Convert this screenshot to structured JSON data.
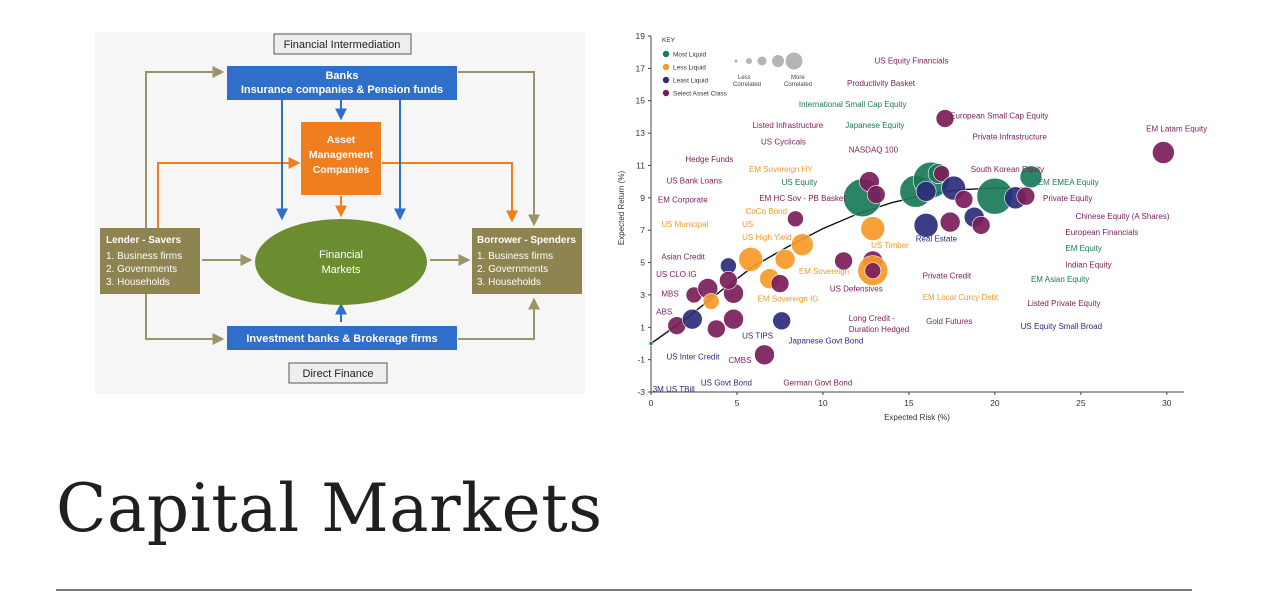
{
  "slide": {
    "title": "Capital Markets"
  },
  "diagram": {
    "financial_intermediation": "Financial Intermediation",
    "direct_finance": "Direct Finance",
    "banks": {
      "line1": "Banks",
      "line2": "Insurance companies & Pension funds"
    },
    "asset_management": {
      "line1": "Asset",
      "line2": "Management",
      "line3": "Companies"
    },
    "markets": {
      "line1": "Financial",
      "line2": "Markets"
    },
    "investment_banks": "Investment banks & Brokerage firms",
    "lender": {
      "title": "Lender - Savers",
      "items": [
        "1. Business firms",
        "2. Governments",
        "3. Households"
      ]
    },
    "borrower": {
      "title": "Borrower - Spenders",
      "items": [
        "1. Business firms",
        "2. Governments",
        "3. Households"
      ]
    },
    "colors": {
      "blue": "#2f6fc9",
      "orange": "#f07d1e",
      "green": "#6b8c2f",
      "olive": "#8d8452",
      "arrow_olive": "#9a9468"
    }
  },
  "chart_data": {
    "type": "scatter",
    "xlabel": "Expected Risk (%)",
    "ylabel": "Expected Return (%)",
    "xlim": [
      0,
      31
    ],
    "ylim": [
      -3,
      19
    ],
    "x_ticks": [
      "0",
      "5",
      "10",
      "15",
      "20",
      "25",
      "30"
    ],
    "y_ticks": [
      "-3",
      "-1",
      "1",
      "3",
      "5",
      "7",
      "9",
      "11",
      "13",
      "15",
      "17",
      "19"
    ],
    "grid": false,
    "legend": {
      "title": "KEY",
      "items": [
        "Most Liquid",
        "Less Liquid",
        "Least Liquid",
        "Select Asset Class"
      ],
      "size_low": "Less",
      "size_low2": "Correlated",
      "size_high": "More",
      "size_high2": "Correlated"
    },
    "colors": {
      "most": "#1a7a5a",
      "less": "#f59a28",
      "least": "#2b2c7a",
      "select": "#7a1e5a"
    },
    "frontier": [
      [
        0,
        0
      ],
      [
        2,
        1.5
      ],
      [
        4,
        3.2
      ],
      [
        6,
        4.8
      ],
      [
        8,
        6.0
      ],
      [
        10,
        7.1
      ],
      [
        12,
        8.0
      ],
      [
        14,
        8.7
      ],
      [
        16,
        9.2
      ],
      [
        18,
        9.5
      ],
      [
        20,
        9.6
      ],
      [
        22,
        9.6
      ]
    ],
    "points": [
      {
        "x": 0,
        "y": 0,
        "s": 2,
        "c": "most"
      },
      {
        "x": 1.5,
        "y": 1.1,
        "s": 9,
        "c": "select"
      },
      {
        "x": 2.4,
        "y": 1.5,
        "s": 10,
        "c": "least"
      },
      {
        "x": 2.5,
        "y": 3,
        "s": 8,
        "c": "select"
      },
      {
        "x": 3.3,
        "y": 3.4,
        "s": 10,
        "c": "select"
      },
      {
        "x": 3.5,
        "y": 2.6,
        "s": 8,
        "c": "less"
      },
      {
        "x": 3.8,
        "y": 0.9,
        "s": 9,
        "c": "select"
      },
      {
        "x": 4.5,
        "y": 4.8,
        "s": 8,
        "c": "least"
      },
      {
        "x": 4.8,
        "y": 1.5,
        "s": 10,
        "c": "select"
      },
      {
        "x": 4.8,
        "y": 3.1,
        "s": 10,
        "c": "select"
      },
      {
        "x": 4.5,
        "y": 3.9,
        "s": 9,
        "c": "select"
      },
      {
        "x": 5.8,
        "y": 5.2,
        "s": 12,
        "c": "less"
      },
      {
        "x": 6.6,
        "y": -0.7,
        "s": 10,
        "c": "select"
      },
      {
        "x": 6.9,
        "y": 4,
        "s": 10,
        "c": "less"
      },
      {
        "x": 7.8,
        "y": 5.2,
        "s": 10,
        "c": "less"
      },
      {
        "x": 7.6,
        "y": 1.4,
        "s": 9,
        "c": "least"
      },
      {
        "x": 7.5,
        "y": 3.7,
        "s": 9,
        "c": "select"
      },
      {
        "x": 8.4,
        "y": 7.7,
        "s": 8,
        "c": "select"
      },
      {
        "x": 8.8,
        "y": 6.1,
        "s": 11,
        "c": "less"
      },
      {
        "x": 11.2,
        "y": 5.1,
        "s": 9,
        "c": "select"
      },
      {
        "x": 12.3,
        "y": 9,
        "s": 19,
        "c": "most"
      },
      {
        "x": 12.7,
        "y": 10,
        "s": 10,
        "c": "select"
      },
      {
        "x": 12.9,
        "y": 7.1,
        "s": 12,
        "c": "less"
      },
      {
        "x": 12.9,
        "y": 5.1,
        "s": 10,
        "c": "select"
      },
      {
        "x": 12.9,
        "y": 4.5,
        "s": 15,
        "c": "less"
      },
      {
        "x": 12.9,
        "y": 4.5,
        "s": 8,
        "c": "select"
      },
      {
        "x": 13.1,
        "y": 9.2,
        "s": 9,
        "c": "select"
      },
      {
        "x": 15.4,
        "y": 9.4,
        "s": 16,
        "c": "most"
      },
      {
        "x": 16.3,
        "y": 10.1,
        "s": 18,
        "c": "most"
      },
      {
        "x": 16,
        "y": 9.4,
        "s": 10,
        "c": "least"
      },
      {
        "x": 16,
        "y": 7.3,
        "s": 12,
        "c": "least"
      },
      {
        "x": 16.7,
        "y": 10.5,
        "s": 10,
        "c": "most"
      },
      {
        "x": 16.9,
        "y": 10.5,
        "s": 8,
        "c": "select"
      },
      {
        "x": 17.1,
        "y": 13.9,
        "s": 9,
        "c": "select"
      },
      {
        "x": 17.4,
        "y": 7.5,
        "s": 10,
        "c": "select"
      },
      {
        "x": 17.6,
        "y": 9.6,
        "s": 12,
        "c": "least"
      },
      {
        "x": 18.2,
        "y": 8.9,
        "s": 9,
        "c": "select"
      },
      {
        "x": 18.8,
        "y": 7.8,
        "s": 10,
        "c": "least"
      },
      {
        "x": 19.2,
        "y": 7.3,
        "s": 9,
        "c": "select"
      },
      {
        "x": 20,
        "y": 9.1,
        "s": 18,
        "c": "most"
      },
      {
        "x": 21.2,
        "y": 9,
        "s": 11,
        "c": "least"
      },
      {
        "x": 21.8,
        "y": 9.1,
        "s": 9,
        "c": "select"
      },
      {
        "x": 22.1,
        "y": 10.3,
        "s": 11,
        "c": "most"
      },
      {
        "x": 29.8,
        "y": 11.8,
        "s": 11,
        "c": "select"
      }
    ],
    "labels": [
      {
        "text": "US Equity Financials",
        "x": 13,
        "y": 17.3,
        "c": "select",
        "a": "start"
      },
      {
        "text": "Productivity Basket",
        "x": 11.4,
        "y": 15.9,
        "c": "select",
        "a": "start"
      },
      {
        "text": "International Small Cap Equity",
        "x": 8.6,
        "y": 14.6,
        "c": "most",
        "a": "start"
      },
      {
        "text": "European Small Cap Equity",
        "x": 17.4,
        "y": 13.9,
        "c": "select",
        "a": "start"
      },
      {
        "text": "Japanese Equity",
        "x": 11.3,
        "y": 13.3,
        "c": "most",
        "a": "start"
      },
      {
        "text": "Listed Infrastructure",
        "x": 5.9,
        "y": 13.3,
        "c": "select",
        "a": "start"
      },
      {
        "text": "EM Latam Equity",
        "x": 28.8,
        "y": 13.1,
        "c": "select",
        "a": "start"
      },
      {
        "text": "Private Infrastructure",
        "x": 18.7,
        "y": 12.6,
        "c": "select",
        "a": "start"
      },
      {
        "text": "US Cyclicals",
        "x": 6.4,
        "y": 12.3,
        "c": "select",
        "a": "start"
      },
      {
        "text": "NASDAQ 100",
        "x": 11.5,
        "y": 11.8,
        "c": "select",
        "a": "start"
      },
      {
        "text": "Hedge Funds",
        "x": 2.0,
        "y": 11.2,
        "c": "select",
        "a": "start"
      },
      {
        "text": "EM Sovereign HY",
        "x": 5.7,
        "y": 10.6,
        "c": "less",
        "a": "start"
      },
      {
        "text": "South Korean Equity",
        "x": 18.6,
        "y": 10.6,
        "c": "select",
        "a": "start"
      },
      {
        "text": "US Bank Loans",
        "x": 0.9,
        "y": 9.9,
        "c": "select",
        "a": "start"
      },
      {
        "text": "US Equity",
        "x": 7.6,
        "y": 9.8,
        "c": "most",
        "a": "start"
      },
      {
        "text": "EM EMEA Equity",
        "x": 22.5,
        "y": 9.8,
        "c": "most",
        "a": "start"
      },
      {
        "text": "EM HC Sov - PB Basket",
        "x": 6.3,
        "y": 8.8,
        "c": "select",
        "a": "start"
      },
      {
        "text": "EM Corporate",
        "x": 0.4,
        "y": 8.7,
        "c": "select",
        "a": "start"
      },
      {
        "text": "Private Equity",
        "x": 22.8,
        "y": 8.8,
        "c": "select",
        "a": "start"
      },
      {
        "text": "CoCo Bond",
        "x": 5.5,
        "y": 8.0,
        "c": "less",
        "a": "start"
      },
      {
        "text": "Chinese Equity (A Shares)",
        "x": 24.7,
        "y": 7.7,
        "c": "select",
        "a": "start"
      },
      {
        "text": "US Municipal",
        "x": 0.6,
        "y": 7.2,
        "c": "less",
        "a": "start"
      },
      {
        "text": "US",
        "x": 5.3,
        "y": 7.2,
        "c": "less",
        "a": "start"
      },
      {
        "text": "European Financials",
        "x": 24.1,
        "y": 6.7,
        "c": "select",
        "a": "start"
      },
      {
        "text": "Real Estate",
        "x": 15.4,
        "y": 6.3,
        "c": "least",
        "a": "start"
      },
      {
        "text": "US High Yield",
        "x": 5.3,
        "y": 6.4,
        "c": "less",
        "a": "start"
      },
      {
        "text": "US Timber",
        "x": 12.8,
        "y": 5.9,
        "c": "less",
        "a": "start"
      },
      {
        "text": "EM Equity",
        "x": 24.1,
        "y": 5.7,
        "c": "most",
        "a": "start"
      },
      {
        "text": "Asian Credit",
        "x": 0.6,
        "y": 5.2,
        "c": "select",
        "a": "start"
      },
      {
        "text": "Indian Equity",
        "x": 24.1,
        "y": 4.7,
        "c": "select",
        "a": "start"
      },
      {
        "text": "EM Sovereign",
        "x": 8.6,
        "y": 4.3,
        "c": "less",
        "a": "start"
      },
      {
        "text": "Private Credit",
        "x": 15.8,
        "y": 4.0,
        "c": "select",
        "a": "start"
      },
      {
        "text": "US CLO IG",
        "x": 0.3,
        "y": 4.1,
        "c": "select",
        "a": "start"
      },
      {
        "text": "EM Asian Equity",
        "x": 22.1,
        "y": 3.8,
        "c": "most",
        "a": "start"
      },
      {
        "text": "US Defensives",
        "x": 10.4,
        "y": 3.2,
        "c": "select",
        "a": "start"
      },
      {
        "text": "MBS",
        "x": 0.6,
        "y": 2.9,
        "c": "select",
        "a": "start"
      },
      {
        "text": "EM Local Curcy Debt",
        "x": 15.8,
        "y": 2.7,
        "c": "less",
        "a": "start"
      },
      {
        "text": "EM Sovereign IG",
        "x": 6.2,
        "y": 2.6,
        "c": "less",
        "a": "start"
      },
      {
        "text": "Listed Private Equity",
        "x": 21.9,
        "y": 2.3,
        "c": "select",
        "a": "start"
      },
      {
        "text": "ABS",
        "x": 0.3,
        "y": 1.8,
        "c": "select",
        "a": "start"
      },
      {
        "text": "Long Credit -",
        "x": 11.5,
        "y": 1.4,
        "c": "select",
        "a": "start"
      },
      {
        "text": "Gold Futures",
        "x": 16.0,
        "y": 1.2,
        "c": "select",
        "a": "start"
      },
      {
        "text": "US Equity Small Broad",
        "x": 21.5,
        "y": 0.9,
        "c": "least",
        "a": "start"
      },
      {
        "text": "Duration Hedged",
        "x": 11.5,
        "y": 0.7,
        "c": "select",
        "a": "start"
      },
      {
        "text": "US TIPS",
        "x": 5.3,
        "y": 0.3,
        "c": "least",
        "a": "start"
      },
      {
        "text": "Japanese Govt Bond",
        "x": 8.0,
        "y": 0.0,
        "c": "least",
        "a": "start"
      },
      {
        "text": "US Inter Credit",
        "x": 0.9,
        "y": -1.0,
        "c": "least",
        "a": "start"
      },
      {
        "text": "CMBS",
        "x": 4.5,
        "y": -1.2,
        "c": "select",
        "a": "start"
      },
      {
        "text": "US Govt Bond",
        "x": 2.9,
        "y": -2.6,
        "c": "least",
        "a": "start"
      },
      {
        "text": "German Govt Bond",
        "x": 7.7,
        "y": -2.6,
        "c": "select",
        "a": "start"
      },
      {
        "text": "3M US TBill",
        "x": 0.1,
        "y": -3.0,
        "c": "least",
        "a": "start"
      }
    ]
  }
}
